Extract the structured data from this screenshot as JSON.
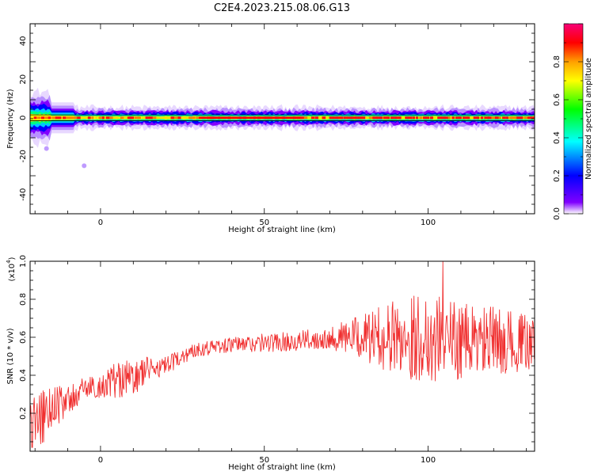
{
  "figure": {
    "title": "C2E4.2023.215.08.06.G13"
  },
  "chart_data": [
    {
      "type": "heatmap",
      "xlabel": "Height of straight line (km)",
      "ylabel": "Frequency (Hz)",
      "xlim": [
        -21.5,
        132.5
      ],
      "ylim": [
        -50,
        49
      ],
      "x_ticks": [
        "0",
        "50",
        "100"
      ],
      "y_ticks": [
        "40",
        "20",
        "0",
        "-20",
        "-40"
      ],
      "colormap": [
        "#f80078",
        "#ff0000",
        "#ffa000",
        "#ffff00",
        "#00ff00",
        "#00ffff",
        "#0000ff",
        "#8000ff",
        "#ffffff"
      ],
      "colorbar": {
        "label": "Normalized spectral amplitude",
        "range": [
          0.0,
          1.0
        ],
        "ticks": [
          "0.0",
          "0.2",
          "0.4",
          "0.6",
          "0.8"
        ]
      },
      "reference_lines_hz": [
        1.5,
        -1.5
      ],
      "signal": {
        "center_frequency_hz": 0,
        "typical_halfwidth_hz": 4,
        "max_halfwidth_hz": 10,
        "outlier_points": [
          [
            -16.5,
            -16
          ],
          [
            -5,
            -25
          ]
        ]
      }
    },
    {
      "type": "line",
      "xlabel": "Height of straight line (km)",
      "ylabel": "SNR (10 * v/v)",
      "y_multiplier": "(x10^4)",
      "xlim": [
        -21.5,
        132.5
      ],
      "ylim": [
        0.0,
        1.0
      ],
      "x_ticks": [
        "0",
        "50",
        "100"
      ],
      "y_ticks": [
        "0.2",
        "0.4",
        "0.6",
        "0.8",
        "1.0"
      ],
      "line_color": "#f03030",
      "series": [
        {
          "trend_x": [
            -21,
            -15,
            -10,
            -5,
            0,
            5,
            10,
            15,
            20,
            25,
            30,
            40,
            50,
            60,
            70,
            80,
            90,
            100,
            110,
            120,
            132
          ],
          "trend_y": [
            0.12,
            0.24,
            0.26,
            0.33,
            0.34,
            0.38,
            0.38,
            0.44,
            0.44,
            0.5,
            0.54,
            0.56,
            0.57,
            0.58,
            0.6,
            0.6,
            0.6,
            0.6,
            0.58,
            0.58,
            0.57
          ],
          "noise_amplitude": [
            0.2,
            0.12,
            0.08,
            0.06,
            0.06,
            0.1,
            0.1,
            0.06,
            0.06,
            0.04,
            0.04,
            0.04,
            0.05,
            0.05,
            0.06,
            0.12,
            0.2,
            0.25,
            0.2,
            0.18,
            0.14
          ],
          "peak": [
            104.5,
            1.0
          ]
        }
      ]
    }
  ],
  "colorbar": {
    "label": "Normalized spectral amplitude"
  },
  "top": {
    "xlabel": "Height of straight line (km)",
    "ylabel": "Frequency (Hz)"
  },
  "bottom": {
    "xlabel": "Height of straight line (km)",
    "ylabel": "SNR (10 * v/v)",
    "exp_base": "(x10",
    "exp_power": "4",
    "exp_close": ")"
  }
}
